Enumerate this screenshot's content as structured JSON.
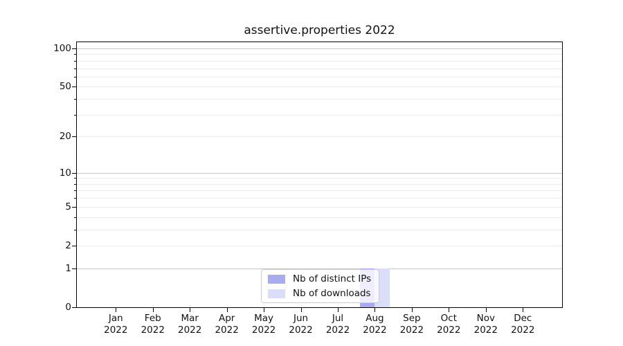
{
  "chart_data": {
    "type": "bar",
    "title": "assertive.properties 2022",
    "categories": [
      "Jan",
      "Feb",
      "Mar",
      "Apr",
      "May",
      "Jun",
      "Jul",
      "Aug",
      "Sep",
      "Oct",
      "Nov",
      "Dec"
    ],
    "year_label": "2022",
    "series": [
      {
        "name": "Nb of distinct IPs",
        "color": "#a9abf0",
        "values": [
          0,
          0,
          0,
          0,
          0,
          0,
          0,
          1,
          0,
          0,
          0,
          0
        ]
      },
      {
        "name": "Nb of downloads",
        "color": "#dcddf8",
        "values": [
          0,
          0,
          0,
          0,
          0,
          0,
          0,
          1,
          0,
          0,
          0,
          0
        ]
      }
    ],
    "xlabel": "",
    "ylabel": "",
    "y_axis": {
      "scale": "log1p",
      "tick_values": [
        0,
        1,
        2,
        5,
        10,
        20,
        50,
        100
      ],
      "tick_labels": [
        "0",
        "1",
        "2",
        "5",
        "10",
        "20",
        "50",
        "100"
      ],
      "major_gridlines": [
        1,
        10,
        100
      ],
      "minor_gridlines": [
        2,
        3,
        4,
        5,
        6,
        7,
        8,
        9,
        20,
        30,
        40,
        50,
        60,
        70,
        80,
        90
      ],
      "ylim": [
        0,
        113
      ]
    },
    "legend": {
      "position": "lower center",
      "entries": [
        "Nb of distinct IPs",
        "Nb of downloads"
      ]
    },
    "grid": true,
    "colors": {
      "grid_major": "#c6c6c6",
      "grid_minor": "#ececec",
      "axis": "#000000",
      "background": "#ffffff"
    }
  }
}
